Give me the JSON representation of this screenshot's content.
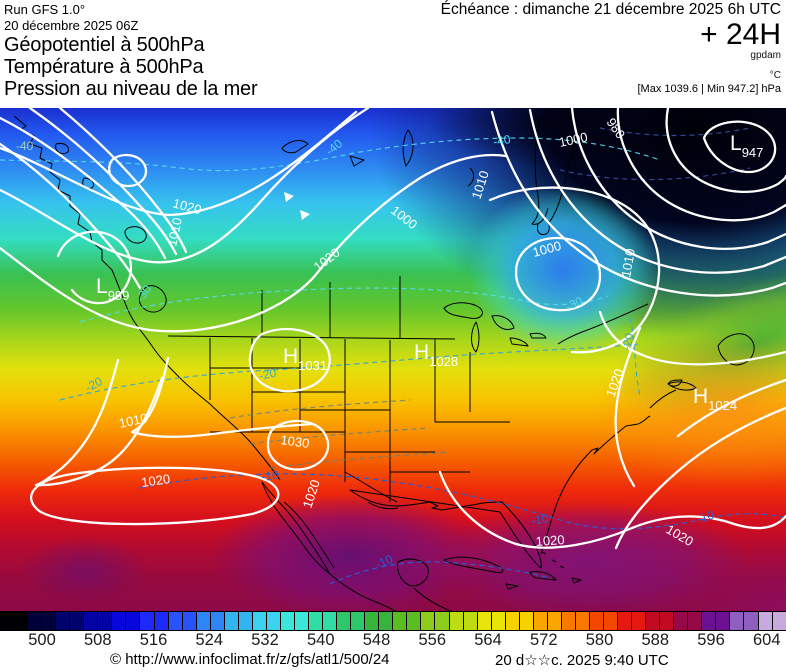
{
  "header": {
    "run_model": "Run GFS 1.0°",
    "run_date": "20 décembre 2025 06Z",
    "product_line1": "Géopotentiel à 500hPa",
    "product_line2": "Température à 500hPa",
    "product_line3": "Pression au niveau de la mer",
    "echeance": "Échéance : dimanche 21 décembre 2025 6h UTC",
    "lead_time": "+ 24H",
    "unit_geopotential": "gpdam",
    "unit_temperature": "°C",
    "extremes": "[Max 1039.6 | Min 947.2] hPa"
  },
  "map": {
    "pressure_centers": [
      {
        "letter": "L",
        "value": "999"
      },
      {
        "letter": "L",
        "value": "947"
      },
      {
        "letter": "H",
        "value": "1031"
      },
      {
        "letter": "H",
        "value": "1028"
      },
      {
        "letter": "H",
        "value": "1024"
      }
    ],
    "isobar_labels": [
      {
        "text": "1020"
      },
      {
        "text": "1010"
      },
      {
        "text": "1020"
      },
      {
        "text": "1000"
      },
      {
        "text": "1000"
      },
      {
        "text": "980"
      },
      {
        "text": "1010"
      },
      {
        "text": "1000"
      },
      {
        "text": "1010"
      },
      {
        "text": "1030"
      },
      {
        "text": "1010"
      },
      {
        "text": "1020"
      },
      {
        "text": "1020"
      },
      {
        "text": "1020"
      },
      {
        "text": "1020"
      },
      {
        "text": "1020"
      }
    ],
    "temperature_labels": [
      {
        "text": "-40"
      },
      {
        "text": "-40"
      },
      {
        "text": "-40"
      },
      {
        "text": "-30"
      },
      {
        "text": "-30"
      },
      {
        "text": "-20"
      },
      {
        "text": "-20"
      },
      {
        "text": "-20"
      },
      {
        "text": "-10"
      },
      {
        "text": "-10"
      },
      {
        "text": "-10"
      },
      {
        "text": "-10"
      }
    ]
  },
  "colorbar": {
    "tick_labels": [
      "500",
      "508",
      "516",
      "524",
      "532",
      "540",
      "548",
      "556",
      "564",
      "572",
      "580",
      "588",
      "596",
      "604"
    ],
    "cell_colors": [
      "#000002",
      "#000139",
      "#01026e",
      "#0202a5",
      "#0707dc",
      "#1c2bfa",
      "#2853fa",
      "#2e85f5",
      "#32b4f0",
      "#3bd2f0",
      "#3ce6da",
      "#32dca5",
      "#2dc869",
      "#37b43b",
      "#5abe23",
      "#8ccd1b",
      "#bedc12",
      "#e8e309",
      "#f8d200",
      "#faa500",
      "#fa7800",
      "#f54600",
      "#e61910",
      "#c30a23",
      "#960946",
      "#6b1191",
      "#8f5fc0",
      "#c8aade"
    ]
  },
  "footer": {
    "copyright": "© http://www.infoclimat.fr/z/gfs/atl1/500/24",
    "generated": "20 d☆☆c. 2025  9:40 UTC"
  }
}
